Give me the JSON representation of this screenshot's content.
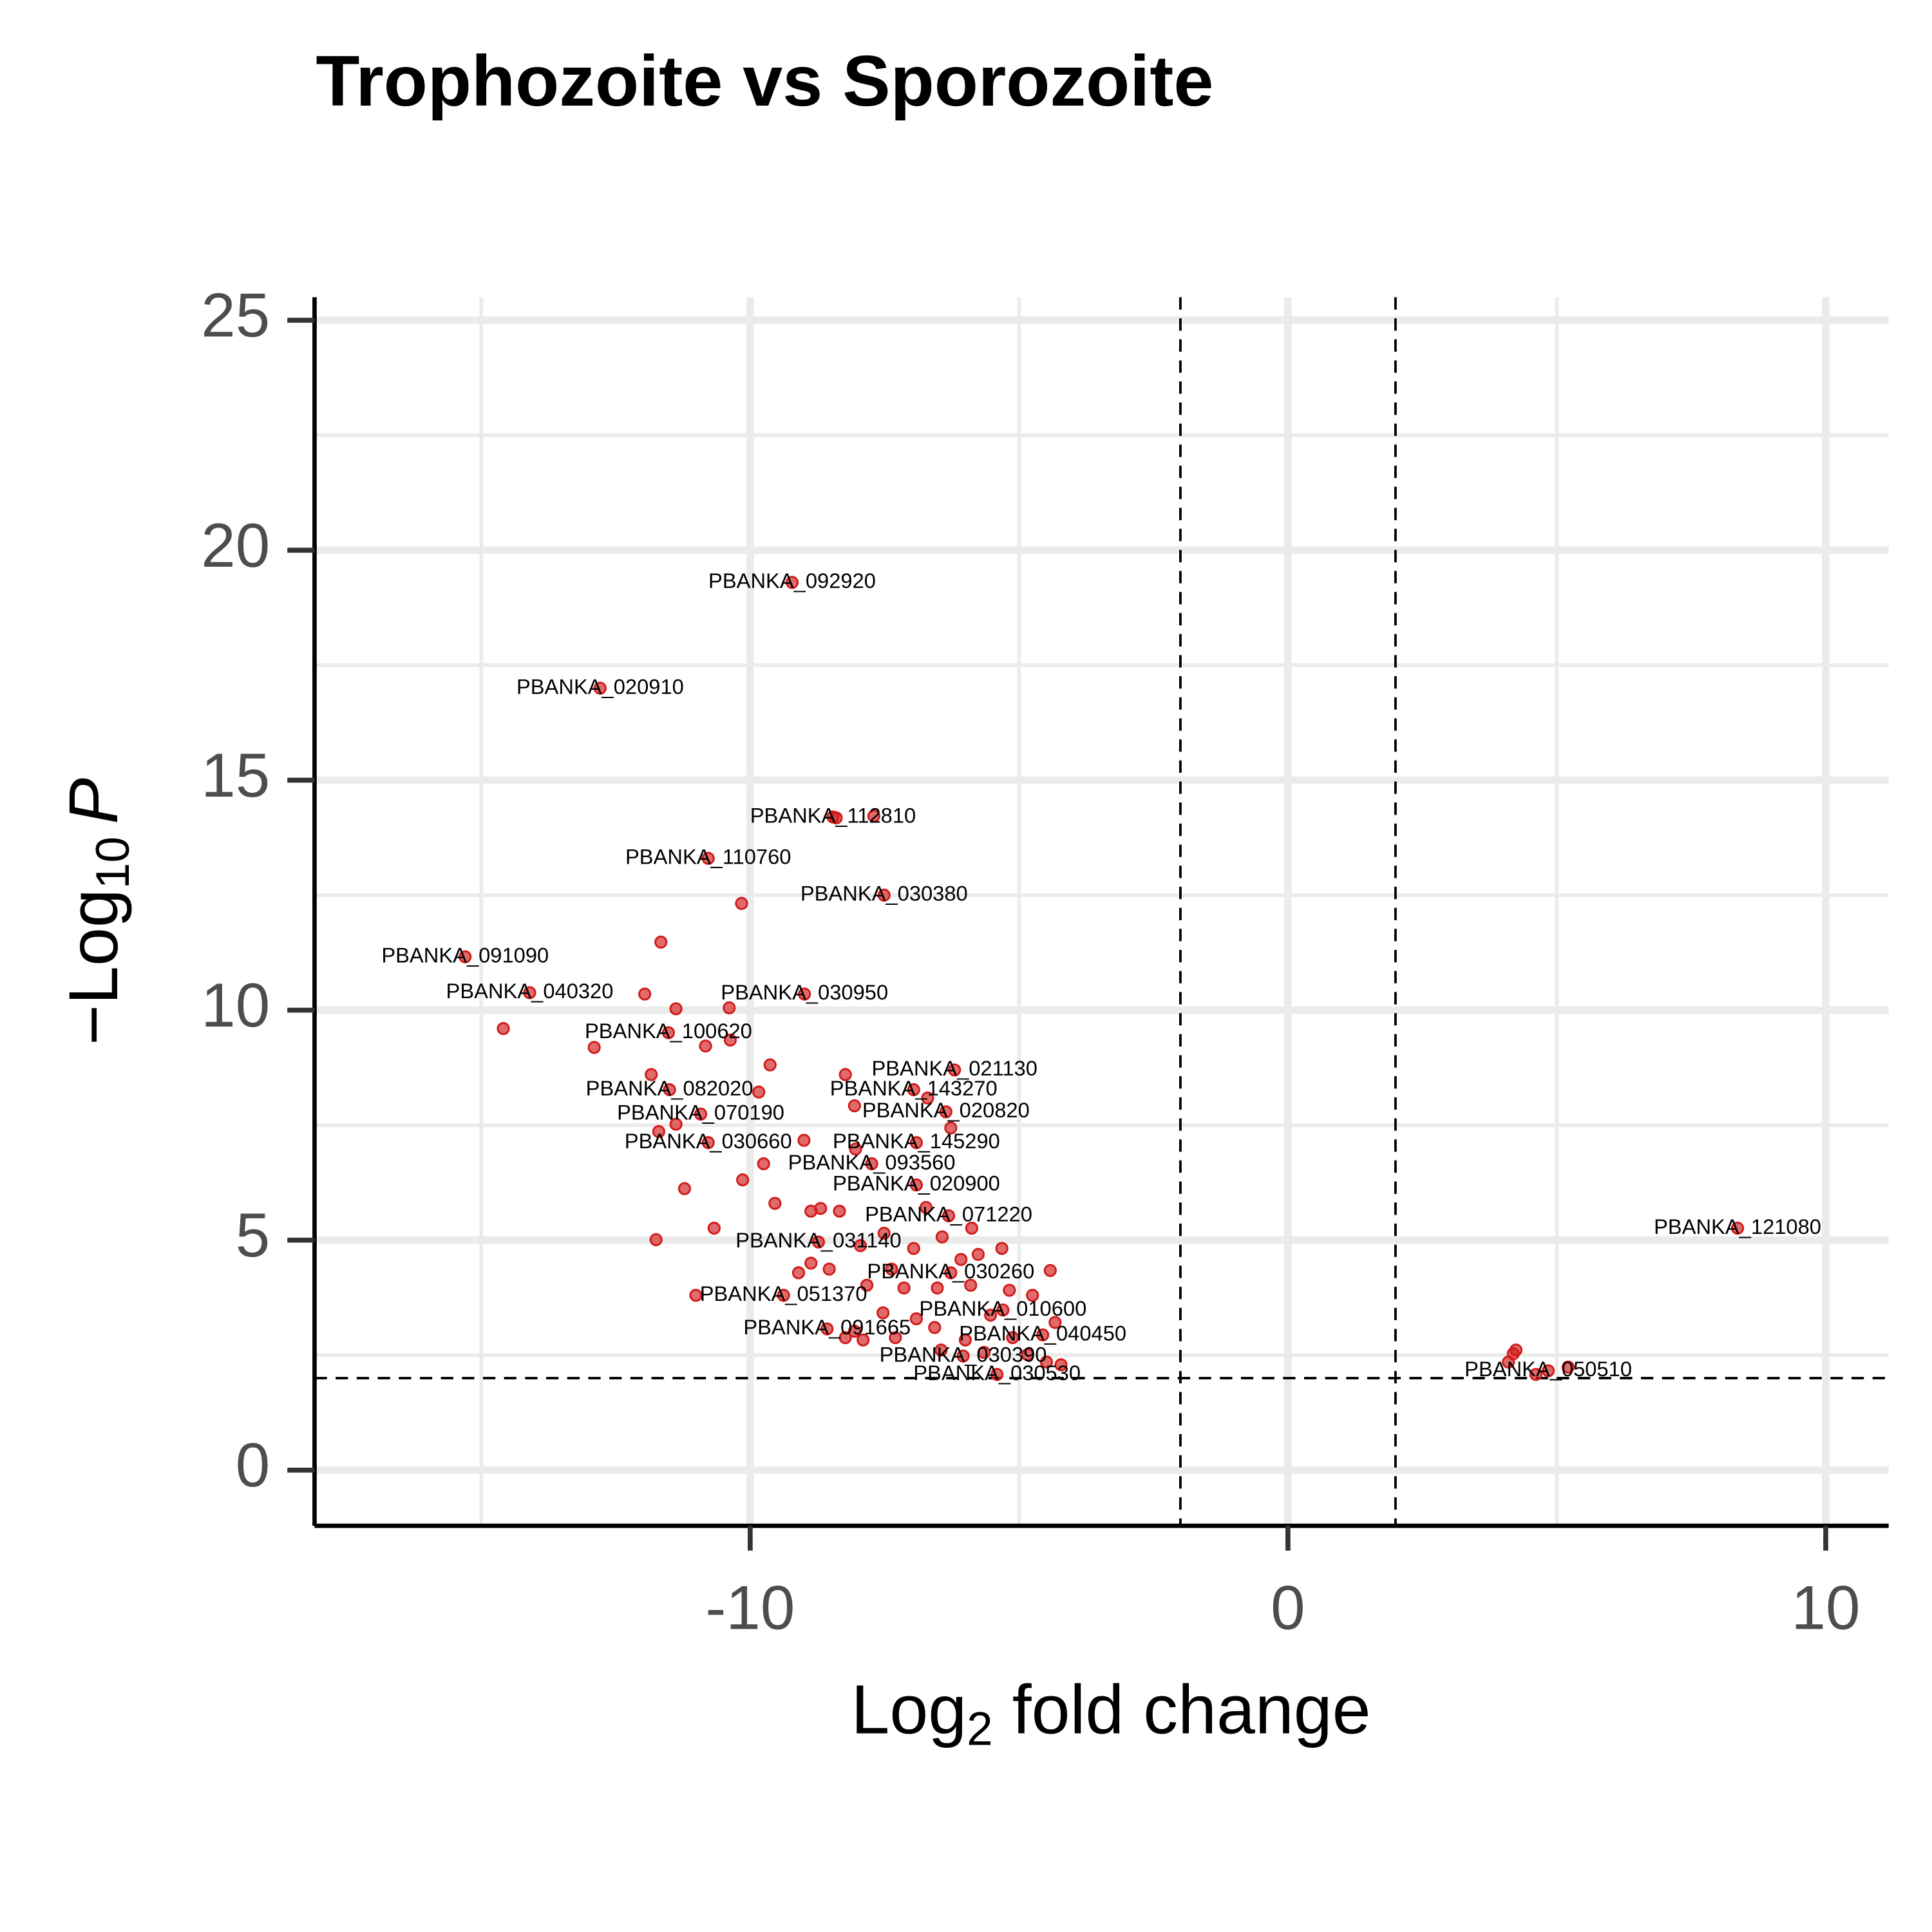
{
  "chart_data": {
    "type": "scatter",
    "title": "Trophozoite vs Sporozoite",
    "x_label": {
      "prefix": "Log",
      "sub": "2",
      "suffix": " fold change"
    },
    "y_label": {
      "prefix": "−Log",
      "sub": "10",
      "var": "P"
    },
    "xlim": [
      -18.1,
      11.17
    ],
    "ylim": [
      -1.21,
      25.5
    ],
    "xticks": [
      -10,
      0,
      10
    ],
    "yticks": [
      0,
      5,
      10,
      15,
      20,
      25
    ],
    "minor_xticks": [
      -15,
      -5,
      5
    ],
    "minor_yticks": [
      2.5,
      7.5,
      12.5,
      17.5,
      22.5
    ],
    "grid": true,
    "thresholds": {
      "x": [
        -2,
        2
      ],
      "y": 2
    },
    "series": [
      {
        "color": "#d11a1a",
        "x": [
          -9.22,
          -12.79,
          -8.46,
          -10.78,
          -7.51,
          -15.3,
          -14.1,
          -8.99,
          -11.52,
          -6.2,
          -11.5,
          -6.96,
          -10.92,
          -6.36,
          -10.78,
          -6.91,
          -7.74,
          -6.91,
          -6.31,
          -8.73,
          8.36,
          -6.27,
          -9.38,
          -5.3,
          -8.57,
          -4.56,
          -6.04,
          4.84,
          -5.41,
          -10.16,
          -11.66,
          -11.96,
          -11.38,
          -10.39,
          -14.59,
          -12.9,
          -10.83,
          -10.37,
          -9.63,
          -8.23,
          -11.84,
          -9.84,
          -8.06,
          -6.7,
          -11.7,
          -11.38,
          -9.0,
          -6.27,
          -8.04,
          -9.75,
          -10.14,
          -11.22,
          -9.54,
          -8.87,
          -8.69,
          -8.34,
          -6.73,
          -10.67,
          -11.75,
          -6.43,
          -5.88,
          -7.51,
          -7.95,
          -6.96,
          -5.32,
          -5.76,
          -6.08,
          -9.1,
          -8.87,
          -8.53,
          -7.37,
          -4.42,
          -7.83,
          -7.14,
          -6.52,
          -5.9,
          -5.18,
          -4.75,
          -11.01,
          -7.53,
          -6.91,
          -5.53,
          -4.33,
          -8.06,
          -7.3,
          -6.57,
          -6.0,
          -5.12,
          -8.23,
          -7.9,
          -6.45,
          -5.65,
          -4.84,
          -4.49,
          -4.22,
          4.19,
          4.24,
          4.1,
          4.61,
          5.21,
          -7.7,
          -8.4
        ],
        "values": [
          19.3,
          17.0,
          14.2,
          13.3,
          12.5,
          11.16,
          10.38,
          10.35,
          9.51,
          8.7,
          8.27,
          8.27,
          7.74,
          7.79,
          7.12,
          7.12,
          6.66,
          6.2,
          5.53,
          4.96,
          5.26,
          4.29,
          3.8,
          3.48,
          3.07,
          2.94,
          2.48,
          2.16,
          2.08,
          12.32,
          11.48,
          10.35,
          10.03,
          10.05,
          9.6,
          9.19,
          9.22,
          9.35,
          8.81,
          8.6,
          8.6,
          8.22,
          7.92,
          8.09,
          7.36,
          7.52,
          7.17,
          7.44,
          6.98,
          6.66,
          6.31,
          6.12,
          5.8,
          5.63,
          5.69,
          5.63,
          5.71,
          5.26,
          5.01,
          5.07,
          5.26,
          5.15,
          4.88,
          4.82,
          4.82,
          4.69,
          4.58,
          4.29,
          4.5,
          4.37,
          4.37,
          4.34,
          4.02,
          3.96,
          3.96,
          4.02,
          3.91,
          3.8,
          3.8,
          3.42,
          3.29,
          3.37,
          3.21,
          3.02,
          2.88,
          3.1,
          2.83,
          2.88,
          2.88,
          2.83,
          2.61,
          2.56,
          2.51,
          2.35,
          2.29,
          2.53,
          2.61,
          2.35,
          2.08,
          2.24,
          14.22,
          14.18
        ],
        "labels": [
          "PBANKA_092920",
          "PBANKA_020910",
          "PBANKA_112810",
          "PBANKA_110760",
          "PBANKA_030380",
          "PBANKA_091090",
          "PBANKA_040320",
          "PBANKA_030950",
          "PBANKA_100620",
          "PBANKA_021130",
          "PBANKA_082020",
          "PBANKA_143270",
          "PBANKA_070190",
          "PBANKA_020820",
          "PBANKA_030660",
          "PBANKA_145290",
          "PBANKA_093560",
          "PBANKA_020900",
          "PBANKA_071220",
          "PBANKA_031140",
          "PBANKA_121080",
          "PBANKA_030260",
          "PBANKA_051370",
          "PBANKA_010600",
          "PBANKA_091665",
          "PBANKA_040450",
          "PBANKA_030390",
          "PBANKA_050510",
          "PBANKA_030530",
          null,
          null,
          null,
          null,
          null,
          null,
          null,
          null,
          null,
          null,
          null,
          null,
          null,
          null,
          null,
          null,
          null,
          null,
          null,
          null,
          null,
          null,
          null,
          null,
          null,
          null,
          null,
          null,
          null,
          null,
          null,
          null,
          null,
          null,
          null,
          null,
          null,
          null,
          null,
          null,
          null,
          null,
          null,
          null,
          null,
          null,
          null,
          null,
          null,
          null,
          null,
          null,
          null,
          null,
          null,
          null,
          null,
          null,
          null,
          null,
          null,
          null,
          null,
          null,
          null,
          null,
          null,
          null,
          null,
          null,
          null,
          null
        ]
      }
    ]
  }
}
